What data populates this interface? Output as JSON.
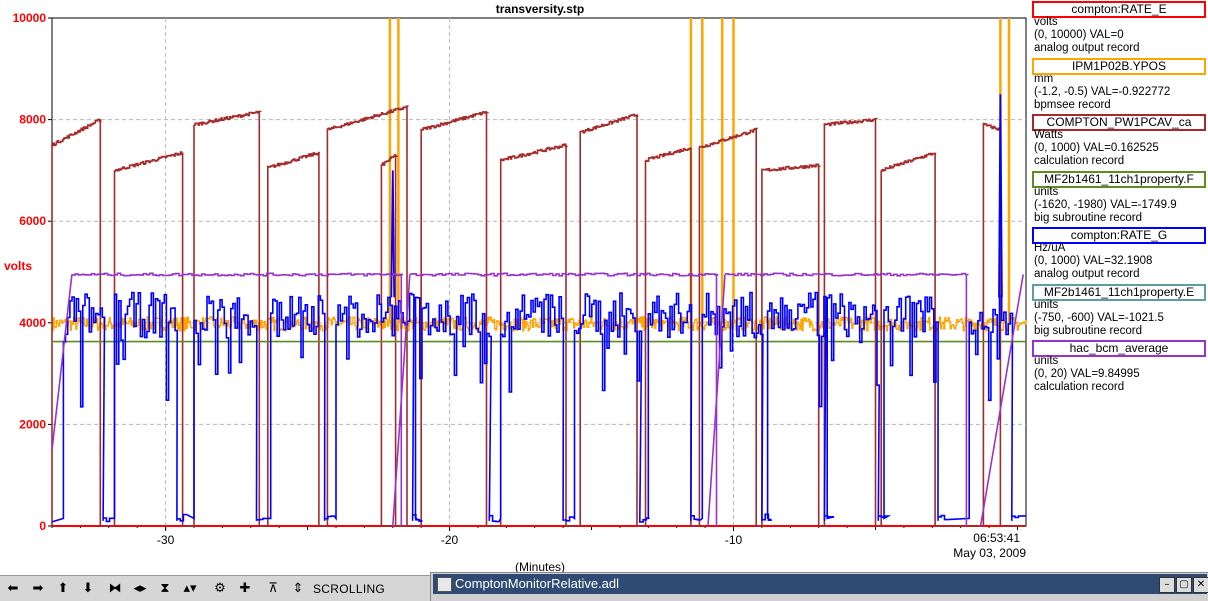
{
  "chart_data": {
    "type": "line",
    "title": "transversity.stp",
    "ylabel": "volts",
    "xlabel": "(Minutes)",
    "ylim": [
      0,
      10000
    ],
    "xlim": [
      -34.0,
      0.3
    ],
    "y_ticks": [
      "0",
      "2000",
      "4000",
      "6000",
      "8000",
      "10000"
    ],
    "y_tick_values": [
      0,
      2000,
      4000,
      6000,
      8000,
      10000
    ],
    "x_ticks": [
      "-30",
      "-20",
      "-10"
    ],
    "x_tick_values": [
      -30,
      -20,
      -10
    ],
    "x_end_label_time": "06:53:41",
    "x_end_label_date": "May 03, 2009",
    "grid": true,
    "series": [
      {
        "name": "compton:RATE_E",
        "color": "#ff0000",
        "kind": "constant",
        "value": 0
      },
      {
        "name": "IPM1P02B.YPOS",
        "color": "#ffa500",
        "kind": "noisy",
        "base": 3980,
        "noise": 140,
        "spikes": [
          -22.1,
          -21.8,
          -11.5,
          -11.1,
          -10.4,
          -10.0,
          -0.6,
          -0.3
        ]
      },
      {
        "name": "COMPTON_PW1PCAV_ca",
        "color": "#a52a2a",
        "kind": "segments",
        "segments": [
          [
            -34.0,
            -32.3,
            7500,
            8000
          ],
          [
            -31.8,
            -29.4,
            7000,
            7350
          ],
          [
            -29.0,
            -26.7,
            7900,
            8150
          ],
          [
            -26.4,
            -24.6,
            7050,
            7350
          ],
          [
            -24.3,
            -21.5,
            7800,
            8250
          ],
          [
            -22.4,
            -21.9,
            7100,
            7300
          ],
          [
            -21.0,
            -18.7,
            7800,
            8150
          ],
          [
            -18.2,
            -15.9,
            7200,
            7500
          ],
          [
            -15.4,
            -13.4,
            7750,
            8100
          ],
          [
            -13.1,
            -11.5,
            7200,
            7450
          ],
          [
            -11.2,
            -9.2,
            7450,
            7800
          ],
          [
            -9.0,
            -7.0,
            7000,
            7100
          ],
          [
            -6.8,
            -5.0,
            7900,
            8000
          ],
          [
            -4.8,
            -2.9,
            7000,
            7350
          ],
          [
            -1.2,
            -0.6,
            7900,
            7800
          ]
        ]
      },
      {
        "name": "MF2b1461_11ch1property.F",
        "color": "#5f8c1e",
        "kind": "constant",
        "value": 3630
      },
      {
        "name": "compton:RATE_G",
        "color": "#0000ff",
        "kind": "rate",
        "on": [
          [
            -33.6,
            -32.2
          ],
          [
            -31.8,
            -29.6
          ],
          [
            -29.0,
            -26.8
          ],
          [
            -26.3,
            -24.4
          ],
          [
            -24.0,
            -21.3
          ],
          [
            -21.2,
            -18.6
          ],
          [
            -18.2,
            -16.0
          ],
          [
            -15.6,
            -13.3
          ],
          [
            -13.0,
            -11.5
          ],
          [
            -11.1,
            -9.0
          ],
          [
            -8.8,
            -6.8
          ],
          [
            -6.7,
            -4.9
          ],
          [
            -4.7,
            -2.8
          ],
          [
            -1.7,
            -0.2
          ]
        ],
        "peaks": [
          [
            -22.0,
            7000
          ],
          [
            -0.6,
            8500
          ]
        ]
      },
      {
        "name": "MF2b1461_11ch1property.E",
        "color": "#5f9ea0",
        "kind": "hidden"
      },
      {
        "name": "hac_bcm_average",
        "color": "#9932cc",
        "kind": "bcm",
        "plateaus": [
          [
            -33.3,
            -21.7,
            4950
          ],
          [
            -21.4,
            -10.6,
            4950
          ],
          [
            -10.3,
            -1.8,
            4950
          ]
        ],
        "ramps": [
          [
            -34.0,
            -33.3,
            1500,
            4950
          ],
          [
            -22.0,
            -21.4,
            0,
            4950
          ],
          [
            -10.9,
            -10.3,
            0,
            4950
          ],
          [
            -1.3,
            0.2,
            0,
            4950
          ]
        ]
      }
    ]
  },
  "legend": [
    {
      "name": "compton:RATE_E",
      "unit": "volts",
      "range_val": "(0, 10000)  VAL=0",
      "record": "analog output record",
      "color": "#ff0000"
    },
    {
      "name": "IPM1P02B.YPOS",
      "unit": "mm",
      "range_val": "(-1.2, -0.5) VAL=-0.922772",
      "record": "bpmsee record",
      "color": "#ffa500"
    },
    {
      "name": "COMPTON_PW1PCAV_ca",
      "unit": "Watts",
      "range_val": "(0, 1000) VAL=0.162525",
      "record": "calculation record",
      "color": "#a52a2a"
    },
    {
      "name": "MF2b1461_11ch1property.F",
      "unit": "units",
      "range_val": "(-1620, -1980) VAL=-1749.9",
      "record": "big subroutine record",
      "color": "#5f8c1e"
    },
    {
      "name": "compton:RATE_G",
      "unit": "Hz/uA",
      "range_val": "(0, 1000) VAL=32.1908",
      "record": "analog output record",
      "color": "#0000ff"
    },
    {
      "name": "MF2b1461_11ch1property.E",
      "unit": "units",
      "range_val": "(-750, -600) VAL=-1021.5",
      "record": "big subroutine record",
      "color": "#5f9ea0"
    },
    {
      "name": "hac_bcm_average",
      "unit": "units",
      "range_val": "(0, 20) VAL=9.84995",
      "record": "calculation record",
      "color": "#9932cc"
    }
  ],
  "toolbar": {
    "status": "SCROLLING",
    "icons": [
      "arrow-left-icon",
      "arrow-right-icon",
      "arrow-up-icon",
      "arrow-down-icon",
      "zoom-in-horizontal-icon",
      "zoom-out-horizontal-icon",
      "zoom-in-vertical-icon",
      "zoom-out-vertical-icon",
      "config-icon",
      "crosshair-icon",
      "scroll-icon",
      "scroll-toggle-icon"
    ],
    "glyphs": [
      "⬅",
      "➡",
      "⬆",
      "⬇",
      "⧓",
      "◂▸",
      "⧗",
      "▴▾",
      "⚙",
      "✚",
      "⊼",
      "⇕"
    ]
  },
  "window": {
    "title": "ComptonMonitorRelative.adl",
    "controls": [
      "–",
      "▢",
      "✕"
    ]
  }
}
